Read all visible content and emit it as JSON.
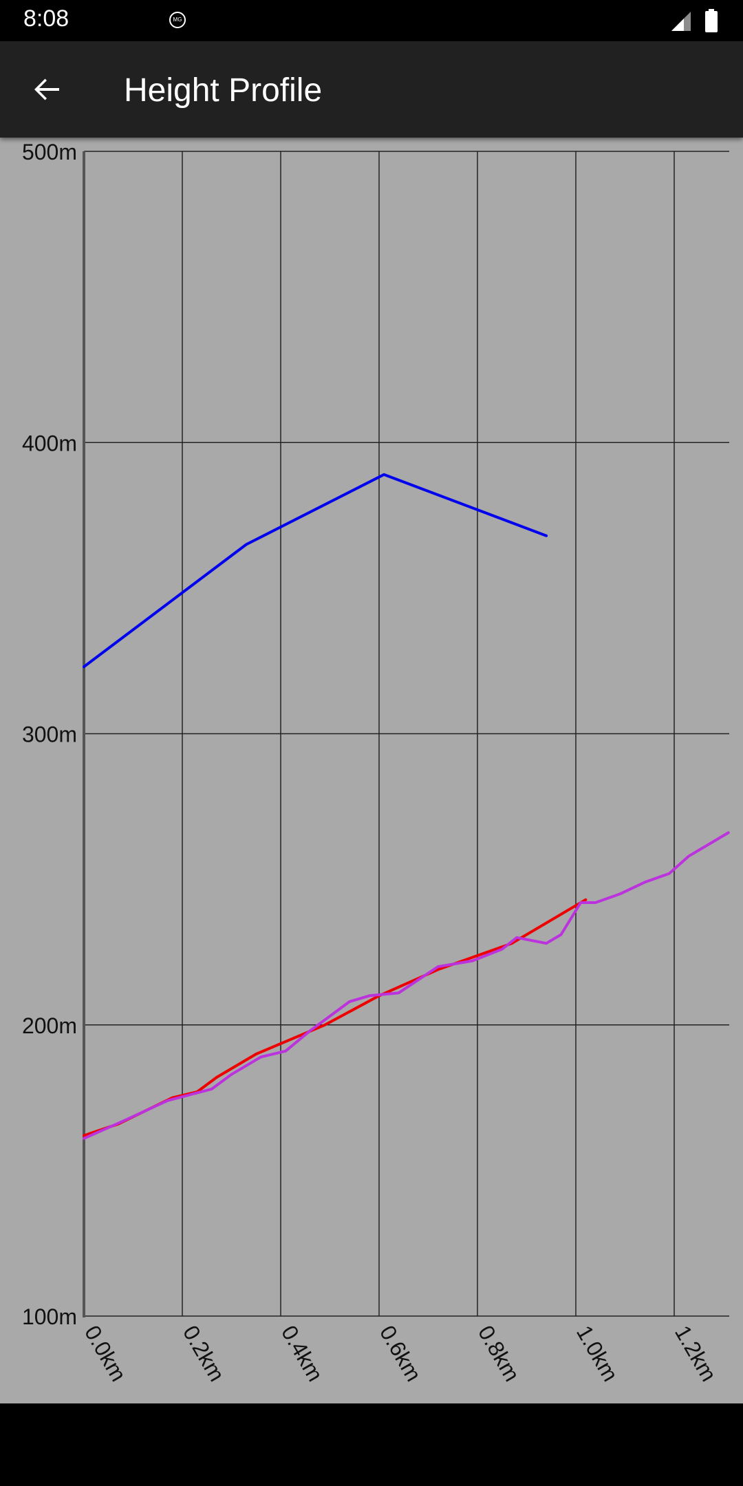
{
  "status_bar": {
    "time": "8:08",
    "app_icon_label": "MG",
    "icons": [
      "signal-icon",
      "battery-icon"
    ]
  },
  "app_bar": {
    "title": "Height Profile",
    "back_icon": "arrow-back-icon"
  },
  "colors": {
    "chart_background": "#a9a9a9",
    "grid": "#222222",
    "axis": "#555555",
    "series_blue": "#0000ee",
    "series_red": "#ee0000",
    "series_purple": "#bb33dd"
  },
  "chart_data": {
    "type": "line",
    "title": "",
    "xlabel": "",
    "ylabel": "",
    "xlim": [
      0,
      1.3
    ],
    "ylim": [
      100,
      500
    ],
    "grid": true,
    "x_ticks": [
      {
        "value": 0.0,
        "label": "0.0km"
      },
      {
        "value": 0.2,
        "label": "0.2km"
      },
      {
        "value": 0.4,
        "label": "0.4km"
      },
      {
        "value": 0.6,
        "label": "0.6km"
      },
      {
        "value": 0.8,
        "label": "0.8km"
      },
      {
        "value": 1.0,
        "label": "1.0km"
      },
      {
        "value": 1.2,
        "label": "1.2km"
      }
    ],
    "y_ticks": [
      {
        "value": 100,
        "label": "100m"
      },
      {
        "value": 200,
        "label": "200m"
      },
      {
        "value": 300,
        "label": "300m"
      },
      {
        "value": 400,
        "label": "400m"
      },
      {
        "value": 500,
        "label": "500m"
      }
    ],
    "series": [
      {
        "color": "#0000ee",
        "points": [
          [
            0.0,
            323
          ],
          [
            0.33,
            365
          ],
          [
            0.61,
            389
          ],
          [
            0.94,
            368
          ]
        ]
      },
      {
        "color": "#ee0000",
        "points": [
          [
            0.0,
            162
          ],
          [
            0.07,
            166
          ],
          [
            0.18,
            175
          ],
          [
            0.23,
            177
          ],
          [
            0.27,
            182
          ],
          [
            0.35,
            190
          ],
          [
            0.49,
            200
          ],
          [
            0.6,
            210
          ],
          [
            0.72,
            219
          ],
          [
            0.87,
            228
          ],
          [
            1.02,
            243
          ]
        ]
      },
      {
        "color": "#bb33dd",
        "points": [
          [
            0.0,
            161
          ],
          [
            0.08,
            167
          ],
          [
            0.17,
            174
          ],
          [
            0.26,
            178
          ],
          [
            0.3,
            183
          ],
          [
            0.36,
            189
          ],
          [
            0.41,
            191
          ],
          [
            0.46,
            198
          ],
          [
            0.54,
            208
          ],
          [
            0.58,
            210
          ],
          [
            0.64,
            211
          ],
          [
            0.72,
            220
          ],
          [
            0.79,
            222
          ],
          [
            0.85,
            226
          ],
          [
            0.88,
            230
          ],
          [
            0.94,
            228
          ],
          [
            0.97,
            231
          ],
          [
            1.01,
            242
          ],
          [
            1.04,
            242
          ],
          [
            1.09,
            245
          ],
          [
            1.14,
            249
          ],
          [
            1.19,
            252
          ],
          [
            1.23,
            258
          ],
          [
            1.28,
            263
          ],
          [
            1.31,
            266
          ]
        ]
      }
    ]
  }
}
